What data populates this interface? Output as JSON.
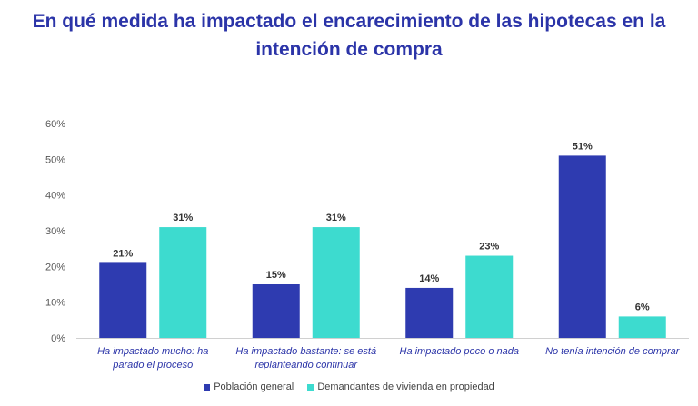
{
  "chart_data": {
    "type": "bar",
    "title": "En qué medida ha impactado el encarecimiento de las hipotecas en la intención de compra",
    "categories": [
      [
        "Ha impactado mucho: ha",
        "parado el proceso"
      ],
      [
        "Ha impactado bastante: se está",
        "replanteando continuar"
      ],
      [
        "Ha impactado poco o nada"
      ],
      [
        "No tenía intención de comprar"
      ]
    ],
    "series": [
      {
        "name": "Población general",
        "color": "#2e3bb0",
        "values": [
          21,
          15,
          14,
          51
        ],
        "labels": [
          "21%",
          "15%",
          "14%",
          "51%"
        ]
      },
      {
        "name": "Demandantes de vivienda en propiedad",
        "color": "#3ddbcf",
        "values": [
          31,
          31,
          23,
          6
        ],
        "labels": [
          "31%",
          "31%",
          "23%",
          "6%"
        ]
      }
    ],
    "yticks": [
      "0%",
      "10%",
      "20%",
      "30%",
      "40%",
      "50%",
      "60%"
    ],
    "ylim": [
      0,
      60
    ],
    "xlabel": "",
    "ylabel": "",
    "legend_position": "bottom"
  }
}
